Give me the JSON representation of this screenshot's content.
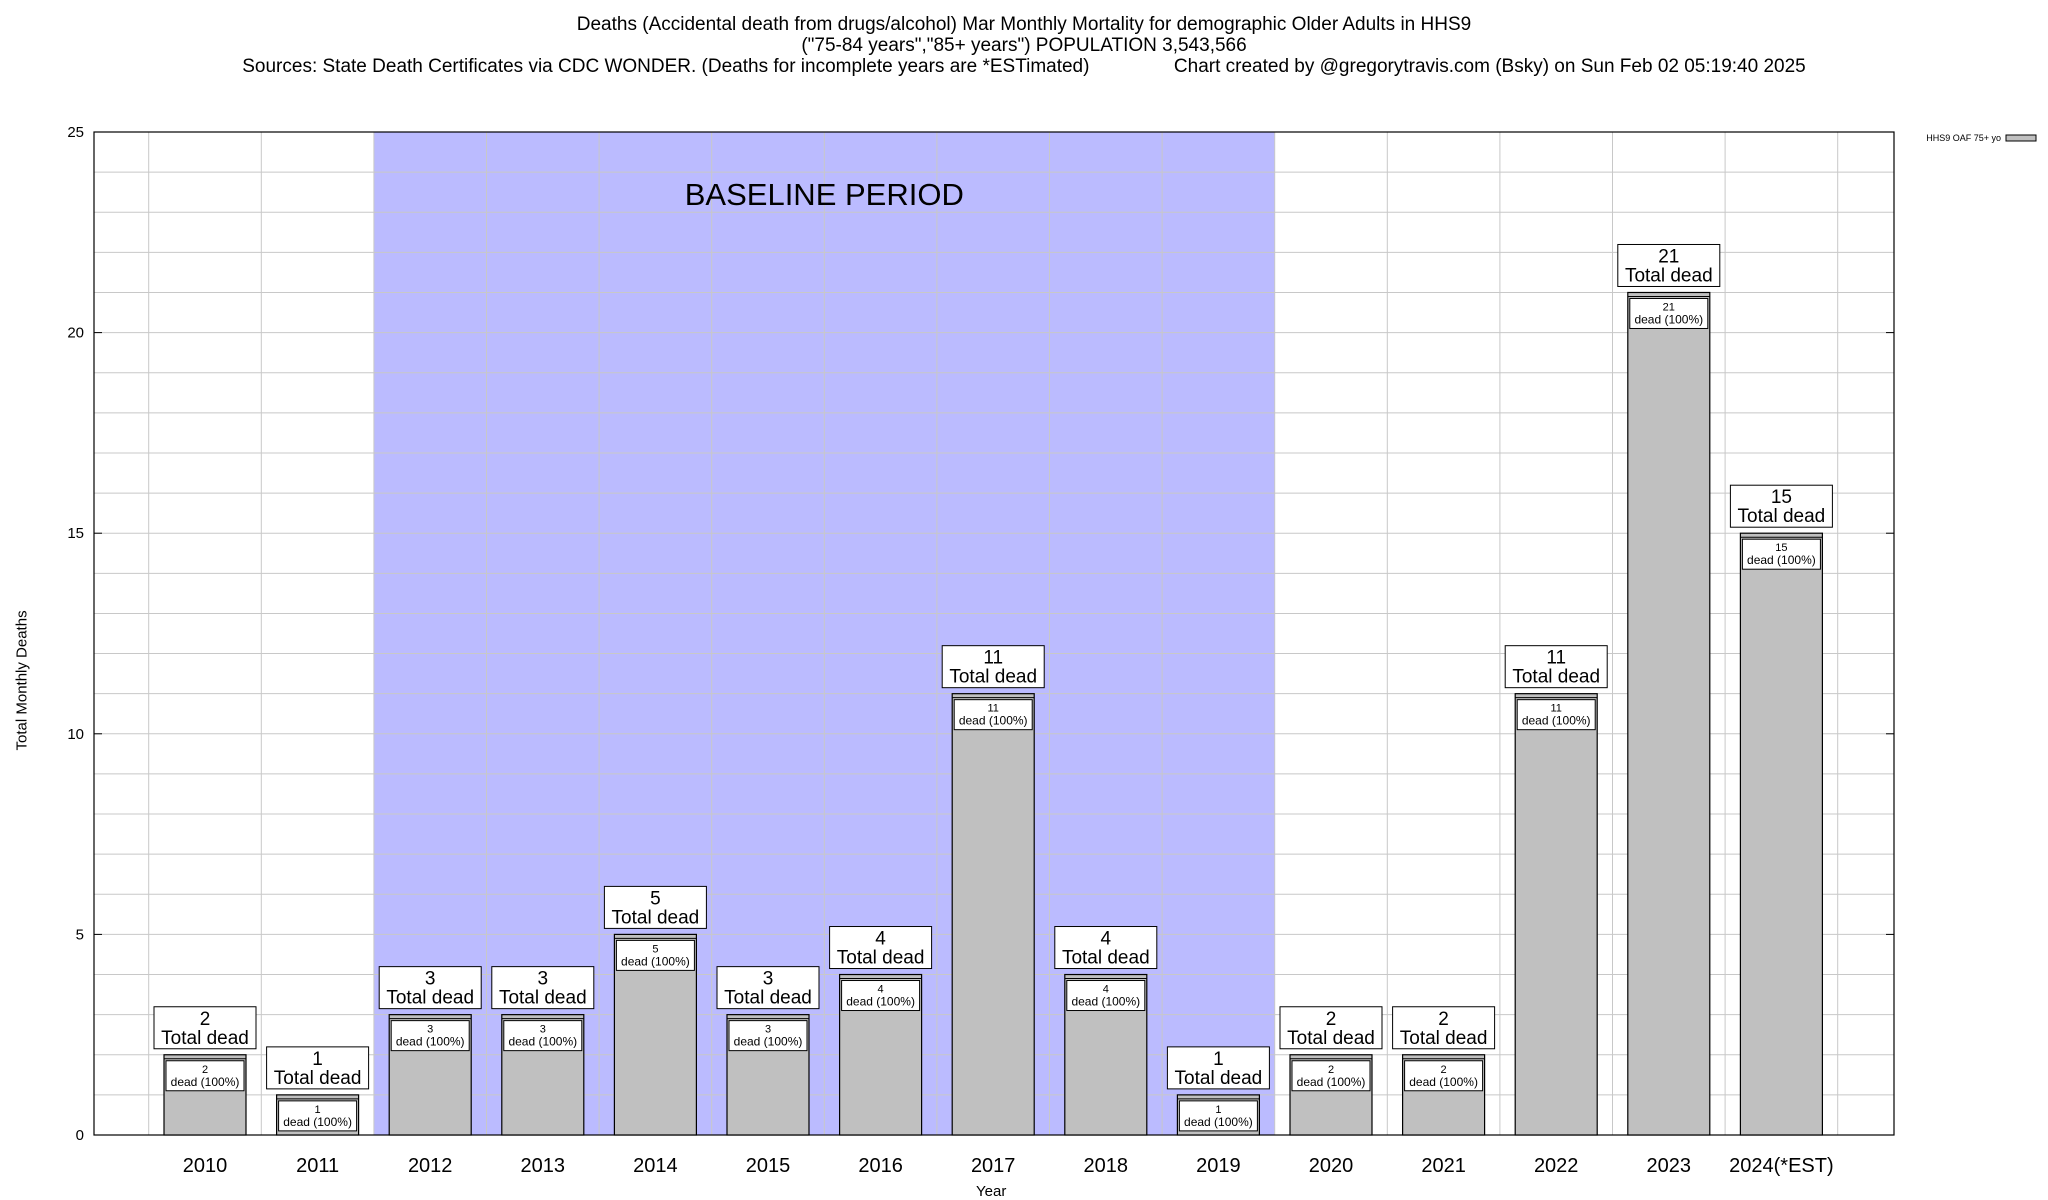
{
  "title": {
    "line1": "Deaths (Accidental death from drugs/alcohol) Mar Monthly Mortality for demographic Older Adults in HHS9",
    "line2": "(\"75-84 years\",\"85+ years\") POPULATION 3,543,566",
    "line3": "Sources: State Death Certificates via CDC WONDER. (Deaths for incomplete years are *ESTimated)                Chart created by @gregorytravis.com (Bsky) on Sun Feb 02 05:19:40 2025"
  },
  "colors": {
    "bar_fill": "#c0c0c0",
    "baseline_band": "#bbbbff",
    "grid": "#c8c8c8"
  },
  "chart_data": {
    "type": "bar",
    "xlabel": "Year",
    "ylabel": "Total Monthly Deaths",
    "ylim": [
      0,
      25
    ],
    "yticks": [
      0,
      5,
      10,
      15,
      20,
      25
    ],
    "categories": [
      "2010",
      "2011",
      "2012",
      "2013",
      "2014",
      "2015",
      "2016",
      "2017",
      "2018",
      "2019",
      "2020",
      "2021",
      "2022",
      "2023",
      "2024(*EST)"
    ],
    "series": [
      {
        "name": "HHS9 OAF 75+ yo",
        "values": [
          2,
          1,
          3,
          3,
          5,
          3,
          4,
          11,
          4,
          1,
          2,
          2,
          11,
          21,
          15
        ]
      }
    ],
    "total_label_text": "Total dead",
    "segment_label_text": "dead (100%)",
    "baseline_band": {
      "label": "BASELINE PERIOD",
      "start": "2012",
      "end": "2019"
    },
    "legend_position": "top-right",
    "grid": true
  }
}
